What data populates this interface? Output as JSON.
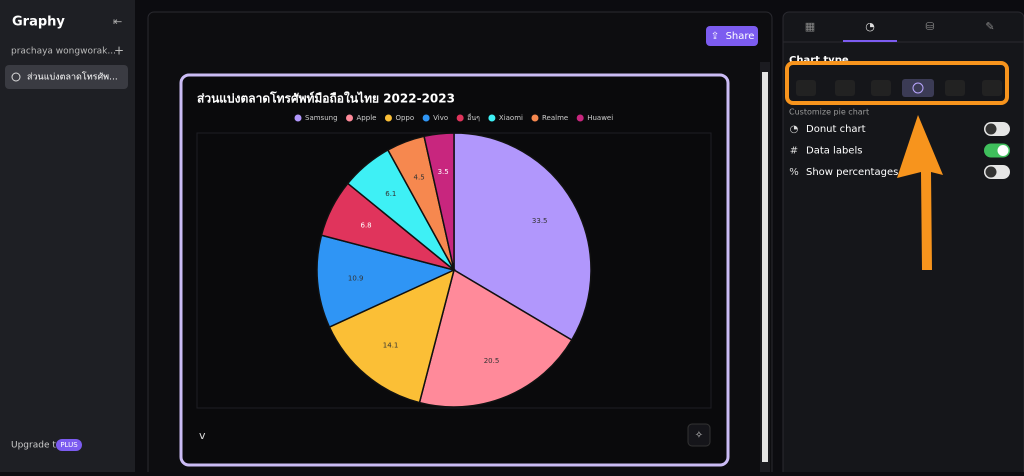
{
  "sidebar": {
    "logo": "Graphy",
    "user": "prachaya wongworak...",
    "add": "+",
    "chat_item": "ส่วนแบ่งตลาดโทรศัพ...",
    "upgrade": "Upgrade to",
    "plan": "PLUS"
  },
  "main": {
    "share": "Share",
    "input": "v"
  },
  "panel": {
    "chart_type_heading": "Chart type",
    "customize_heading": "Customize pie chart",
    "options": [
      {
        "label": "Donut chart",
        "icon": "◔",
        "on": false
      },
      {
        "label": "Data labels",
        "icon": "#",
        "on": true
      },
      {
        "label": "Show percentages",
        "icon": "%",
        "on": false
      }
    ]
  },
  "chart_data": {
    "type": "pie",
    "title": "ส่วนแบ่งตลาดโทรศัพท์มือถือในไทย 2022-2023",
    "categories": [
      "Samsung",
      "Apple",
      "Oppo",
      "Vivo",
      "อื่นๆ",
      "Xiaomi",
      "Realme",
      "Huawei"
    ],
    "values": [
      33.5,
      20.5,
      14.1,
      10.9,
      6.8,
      6.1,
      4.5,
      3.5
    ],
    "colors": [
      "#b197fc",
      "#ff8a9a",
      "#fbbf36",
      "#2f95f5",
      "#e0345c",
      "#3ef0f5",
      "#f6884f",
      "#c8267e"
    ],
    "legend": "top",
    "data_labels": true
  }
}
